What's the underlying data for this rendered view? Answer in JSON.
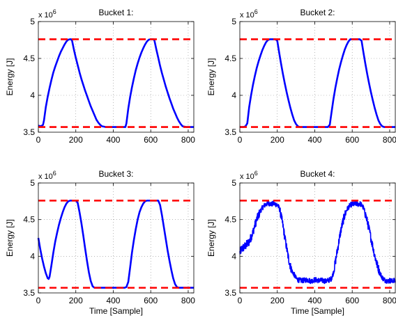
{
  "figure": {
    "xlabel": "Time [Sample]",
    "ylabel": "Energy [J]",
    "scale_label": "x 10",
    "scale_exp": "6",
    "y_ticks": [
      "3.5",
      "4",
      "4.5",
      "5"
    ],
    "x_ticks": [
      "0",
      "200",
      "400",
      "600",
      "800"
    ]
  },
  "chart_data": [
    {
      "type": "line",
      "title": "Bucket 1:",
      "xlabel": "",
      "ylabel": "Energy [J]",
      "xlim": [
        0,
        830
      ],
      "ylim": [
        3.5,
        5
      ],
      "y_scale_factor": "x 10^6",
      "grid": true,
      "colors": {
        "energy": "#0000ff",
        "limits": "#ff0000"
      },
      "limits": [
        4.76,
        3.57
      ],
      "series": [
        {
          "style": "solid",
          "x": [
            0,
            10,
            20,
            25,
            30,
            40,
            50,
            60,
            70,
            80,
            90,
            100,
            110,
            120,
            130,
            140,
            150,
            160,
            170,
            175,
            180,
            190,
            200,
            210,
            220,
            230,
            240,
            250,
            260,
            270,
            280,
            290,
            300,
            310,
            320,
            330,
            340,
            350,
            360,
            380,
            400,
            420,
            440,
            460,
            465,
            470,
            480,
            490,
            500,
            510,
            520,
            530,
            540,
            550,
            560,
            570,
            580,
            590,
            600,
            610,
            615,
            620,
            630,
            640,
            650,
            660,
            670,
            680,
            690,
            700,
            710,
            720,
            730,
            740,
            750,
            760,
            770,
            780,
            790,
            800,
            820,
            830
          ],
          "y": [
            3.59,
            3.58,
            3.59,
            3.6,
            3.66,
            3.84,
            3.98,
            4.1,
            4.21,
            4.31,
            4.39,
            4.46,
            4.53,
            4.59,
            4.64,
            4.69,
            4.73,
            4.755,
            4.76,
            4.76,
            4.74,
            4.62,
            4.51,
            4.41,
            4.31,
            4.22,
            4.14,
            4.06,
            3.99,
            3.92,
            3.85,
            3.79,
            3.73,
            3.67,
            3.63,
            3.6,
            3.58,
            3.575,
            3.57,
            3.57,
            3.57,
            3.57,
            3.57,
            3.57,
            3.57,
            3.62,
            3.82,
            3.98,
            4.11,
            4.23,
            4.34,
            4.43,
            4.51,
            4.58,
            4.64,
            4.69,
            4.73,
            4.755,
            4.76,
            4.76,
            4.76,
            4.74,
            4.62,
            4.51,
            4.4,
            4.3,
            4.21,
            4.12,
            4.04,
            3.96,
            3.89,
            3.82,
            3.76,
            3.7,
            3.65,
            3.61,
            3.58,
            3.575,
            3.57,
            3.57,
            3.57,
            3.57
          ]
        }
      ]
    },
    {
      "type": "line",
      "title": "Bucket 2:",
      "xlabel": "",
      "ylabel": "Energy [J]",
      "xlim": [
        0,
        830
      ],
      "ylim": [
        3.5,
        5
      ],
      "y_scale_factor": "x 10^6",
      "grid": true,
      "colors": {
        "energy": "#0000ff",
        "limits": "#ff0000"
      },
      "limits": [
        4.76,
        3.57
      ],
      "series": [
        {
          "style": "solid",
          "x": [
            0,
            20,
            30,
            40,
            50,
            60,
            70,
            80,
            90,
            100,
            110,
            120,
            130,
            140,
            150,
            160,
            170,
            180,
            190,
            200,
            210,
            220,
            230,
            240,
            250,
            260,
            270,
            280,
            290,
            300,
            310,
            320,
            340,
            360,
            380,
            400,
            420,
            440,
            460,
            470,
            480,
            490,
            500,
            510,
            520,
            530,
            540,
            550,
            560,
            570,
            580,
            590,
            600,
            610,
            620,
            630,
            640,
            650,
            660,
            670,
            680,
            690,
            700,
            710,
            720,
            730,
            740,
            750,
            760,
            770,
            780,
            800,
            830
          ],
          "y": [
            3.57,
            3.57,
            3.58,
            3.62,
            3.84,
            4.0,
            4.14,
            4.26,
            4.37,
            4.46,
            4.54,
            4.61,
            4.67,
            4.72,
            4.75,
            4.76,
            4.76,
            4.76,
            4.76,
            4.74,
            4.58,
            4.43,
            4.29,
            4.16,
            4.04,
            3.93,
            3.83,
            3.74,
            3.66,
            3.61,
            3.58,
            3.57,
            3.57,
            3.57,
            3.57,
            3.57,
            3.57,
            3.57,
            3.57,
            3.57,
            3.6,
            3.78,
            3.95,
            4.1,
            4.23,
            4.35,
            4.45,
            4.54,
            4.62,
            4.68,
            4.73,
            4.76,
            4.76,
            4.76,
            4.76,
            4.76,
            4.76,
            4.74,
            4.58,
            4.43,
            4.29,
            4.16,
            4.04,
            3.93,
            3.83,
            3.74,
            3.66,
            3.61,
            3.58,
            3.57,
            3.57,
            3.57,
            3.57
          ]
        }
      ]
    },
    {
      "type": "line",
      "title": "Bucket 3:",
      "xlabel": "Time [Sample]",
      "ylabel": "Energy [J]",
      "xlim": [
        0,
        830
      ],
      "ylim": [
        3.5,
        5
      ],
      "y_scale_factor": "x 10^6",
      "grid": true,
      "colors": {
        "energy": "#0000ff",
        "limits": "#ff0000"
      },
      "limits": [
        4.76,
        3.57
      ],
      "series": [
        {
          "style": "solid",
          "x": [
            0,
            10,
            20,
            30,
            40,
            50,
            55,
            60,
            70,
            80,
            90,
            100,
            110,
            120,
            130,
            140,
            150,
            160,
            170,
            180,
            190,
            200,
            210,
            220,
            230,
            240,
            250,
            260,
            270,
            280,
            290,
            300,
            320,
            340,
            360,
            380,
            400,
            420,
            440,
            460,
            470,
            480,
            490,
            500,
            510,
            520,
            530,
            540,
            550,
            560,
            570,
            580,
            590,
            600,
            610,
            620,
            630,
            640,
            650,
            660,
            670,
            680,
            690,
            700,
            710,
            720,
            730,
            740,
            750,
            760,
            780,
            800,
            830
          ],
          "y": [
            4.25,
            4.1,
            3.97,
            3.86,
            3.77,
            3.7,
            3.69,
            3.72,
            3.88,
            4.05,
            4.2,
            4.32,
            4.43,
            4.52,
            4.6,
            4.67,
            4.72,
            4.75,
            4.76,
            4.76,
            4.76,
            4.76,
            4.73,
            4.6,
            4.45,
            4.28,
            4.1,
            3.93,
            3.78,
            3.66,
            3.59,
            3.57,
            3.57,
            3.57,
            3.57,
            3.57,
            3.57,
            3.57,
            3.57,
            3.57,
            3.58,
            3.65,
            3.85,
            4.05,
            4.22,
            4.37,
            4.5,
            4.6,
            4.67,
            4.72,
            4.75,
            4.76,
            4.76,
            4.76,
            4.76,
            4.76,
            4.76,
            4.76,
            4.7,
            4.56,
            4.4,
            4.24,
            4.08,
            3.94,
            3.81,
            3.7,
            3.62,
            3.58,
            3.57,
            3.57,
            3.57,
            3.57,
            3.57
          ]
        }
      ]
    },
    {
      "type": "line",
      "title": "Bucket 4:",
      "xlabel": "Time [Sample]",
      "ylabel": "Energy [J]",
      "xlim": [
        0,
        830
      ],
      "ylim": [
        3.5,
        5
      ],
      "y_scale_factor": "x 10^6",
      "grid": true,
      "colors": {
        "energy": "#0000ff",
        "limits": "#ff0000"
      },
      "limits": [
        4.76,
        3.57
      ],
      "series": [
        {
          "style": "solid",
          "noisy": true,
          "x": [
            0,
            10,
            20,
            30,
            40,
            50,
            60,
            70,
            80,
            90,
            100,
            110,
            120,
            130,
            140,
            150,
            160,
            170,
            180,
            190,
            200,
            210,
            220,
            230,
            240,
            250,
            260,
            270,
            280,
            290,
            300,
            310,
            320,
            340,
            360,
            380,
            400,
            420,
            440,
            460,
            480,
            490,
            500,
            510,
            520,
            530,
            540,
            550,
            560,
            570,
            580,
            590,
            600,
            610,
            620,
            630,
            640,
            650,
            660,
            670,
            680,
            690,
            700,
            710,
            720,
            730,
            740,
            750,
            760,
            770,
            780,
            790,
            800,
            810,
            820,
            830
          ],
          "y": [
            4.05,
            4.1,
            4.12,
            4.14,
            4.17,
            4.2,
            4.26,
            4.33,
            4.42,
            4.5,
            4.56,
            4.62,
            4.66,
            4.69,
            4.71,
            4.72,
            4.72,
            4.71,
            4.72,
            4.71,
            4.7,
            4.66,
            4.56,
            4.42,
            4.26,
            4.11,
            3.97,
            3.86,
            3.79,
            3.75,
            3.7,
            3.68,
            3.67,
            3.67,
            3.68,
            3.66,
            3.68,
            3.67,
            3.67,
            3.66,
            3.68,
            3.7,
            3.78,
            3.92,
            4.07,
            4.22,
            4.36,
            4.47,
            4.56,
            4.63,
            4.67,
            4.7,
            4.71,
            4.71,
            4.72,
            4.71,
            4.72,
            4.7,
            4.66,
            4.58,
            4.48,
            4.37,
            4.25,
            4.13,
            4.01,
            3.91,
            3.83,
            3.76,
            3.71,
            3.68,
            3.67,
            3.66,
            3.67,
            3.66,
            3.67,
            3.66
          ]
        }
      ]
    }
  ]
}
